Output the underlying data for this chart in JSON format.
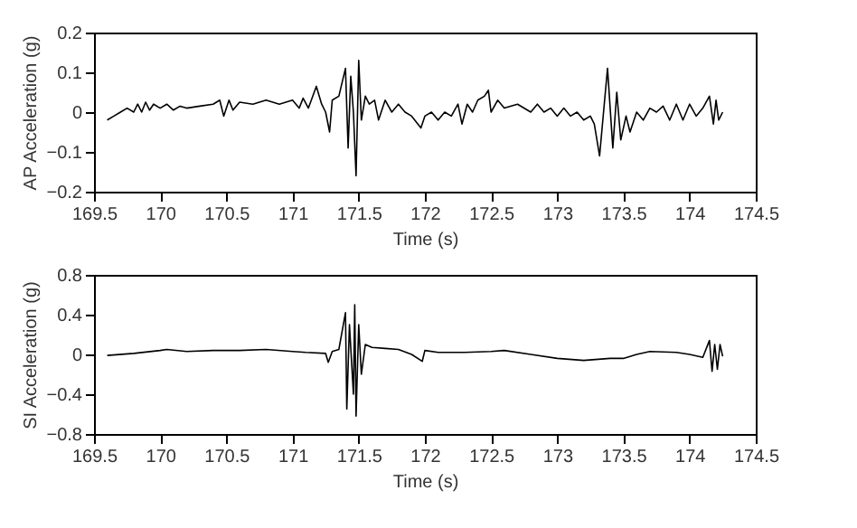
{
  "chart_data": [
    {
      "type": "line",
      "xlabel": "Time (s)",
      "ylabel": "AP Acceleration (g)",
      "xlim": [
        169.5,
        174.5
      ],
      "xticks": [
        169.5,
        170,
        170.5,
        171,
        171.5,
        172,
        172.5,
        173,
        173.5,
        174,
        174.5
      ],
      "ylim": [
        -0.2,
        0.2
      ],
      "yticks": [
        -0.2,
        -0.1,
        0,
        0.1,
        0.2
      ],
      "grid": false,
      "legend": false,
      "series": [
        {
          "color": "#000000",
          "x": [
            169.6,
            169.65,
            169.7,
            169.75,
            169.8,
            169.83,
            169.86,
            169.89,
            169.92,
            169.95,
            170.0,
            170.05,
            170.1,
            170.15,
            170.2,
            170.3,
            170.4,
            170.45,
            170.48,
            170.52,
            170.55,
            170.6,
            170.7,
            170.8,
            170.9,
            171.0,
            171.05,
            171.08,
            171.12,
            171.18,
            171.22,
            171.25,
            171.28,
            171.3,
            171.35,
            171.4,
            171.42,
            171.44,
            171.46,
            171.48,
            171.5,
            171.52,
            171.55,
            171.58,
            171.62,
            171.65,
            171.7,
            171.75,
            171.8,
            171.85,
            171.9,
            171.97,
            172.0,
            172.05,
            172.1,
            172.15,
            172.2,
            172.25,
            172.28,
            172.32,
            172.36,
            172.4,
            172.45,
            172.48,
            172.5,
            172.55,
            172.6,
            172.7,
            172.8,
            172.85,
            172.9,
            172.95,
            173.0,
            173.05,
            173.1,
            173.15,
            173.2,
            173.25,
            173.28,
            173.32,
            173.35,
            173.38,
            173.42,
            173.45,
            173.48,
            173.52,
            173.55,
            173.6,
            173.65,
            173.7,
            173.75,
            173.8,
            173.85,
            173.9,
            173.95,
            174.0,
            174.05,
            174.1,
            174.15,
            174.18,
            174.2,
            174.22,
            174.25
          ],
          "values": [
            -0.02,
            -0.01,
            0.0,
            0.01,
            0.0,
            0.02,
            0.0,
            0.025,
            0.005,
            0.02,
            0.01,
            0.02,
            0.005,
            0.015,
            0.01,
            0.015,
            0.02,
            0.03,
            -0.01,
            0.03,
            0.005,
            0.025,
            0.02,
            0.03,
            0.02,
            0.03,
            0.01,
            0.035,
            0.01,
            0.065,
            0.02,
            0.0,
            -0.05,
            0.03,
            0.04,
            0.11,
            -0.09,
            0.09,
            0.0,
            -0.16,
            0.13,
            -0.02,
            0.04,
            0.02,
            0.03,
            -0.02,
            0.03,
            0.0,
            0.02,
            0.0,
            -0.01,
            -0.04,
            -0.01,
            0.0,
            -0.02,
            0.0,
            -0.01,
            0.02,
            -0.03,
            0.02,
            0.0,
            0.03,
            0.04,
            0.055,
            0.0,
            0.03,
            0.01,
            0.02,
            0.0,
            0.02,
            0.0,
            0.01,
            -0.01,
            0.01,
            -0.01,
            0.0,
            -0.02,
            -0.01,
            -0.03,
            -0.11,
            0.0,
            0.11,
            -0.09,
            0.05,
            -0.07,
            -0.01,
            -0.05,
            0.0,
            -0.02,
            0.01,
            0.0,
            0.015,
            -0.02,
            0.02,
            -0.02,
            0.02,
            -0.01,
            0.01,
            0.04,
            -0.03,
            0.03,
            -0.02,
            0.0
          ]
        }
      ]
    },
    {
      "type": "line",
      "xlabel": "Time (s)",
      "ylabel": "SI Acceleration (g)",
      "xlim": [
        169.5,
        174.5
      ],
      "xticks": [
        169.5,
        170,
        170.5,
        171,
        171.5,
        172,
        172.5,
        173,
        173.5,
        174,
        174.5
      ],
      "ylim": [
        -0.8,
        0.8
      ],
      "yticks": [
        -0.8,
        -0.4,
        0,
        0.4,
        0.8
      ],
      "grid": false,
      "legend": false,
      "series": [
        {
          "color": "#000000",
          "x": [
            169.6,
            169.8,
            170.0,
            170.05,
            170.2,
            170.4,
            170.6,
            170.8,
            171.0,
            171.1,
            171.25,
            171.27,
            171.3,
            171.35,
            171.4,
            171.41,
            171.43,
            171.46,
            171.47,
            171.48,
            171.5,
            171.52,
            171.55,
            171.6,
            171.7,
            171.8,
            171.9,
            171.98,
            172.0,
            172.1,
            172.3,
            172.5,
            172.6,
            172.8,
            173.0,
            173.2,
            173.4,
            173.5,
            173.6,
            173.7,
            173.9,
            174.0,
            174.1,
            174.15,
            174.17,
            174.19,
            174.21,
            174.23,
            174.25
          ],
          "values": [
            -0.01,
            0.01,
            0.04,
            0.05,
            0.03,
            0.04,
            0.04,
            0.05,
            0.03,
            0.02,
            0.01,
            -0.08,
            0.03,
            0.05,
            0.42,
            -0.55,
            0.3,
            -0.4,
            0.5,
            -0.62,
            0.3,
            -0.2,
            0.1,
            0.07,
            0.06,
            0.05,
            0.0,
            -0.07,
            0.04,
            0.02,
            0.02,
            0.03,
            0.04,
            0.0,
            -0.04,
            -0.06,
            -0.04,
            -0.04,
            0.0,
            0.03,
            0.02,
            0.0,
            -0.03,
            0.14,
            -0.17,
            0.1,
            -0.15,
            0.1,
            -0.02
          ]
        }
      ]
    }
  ]
}
